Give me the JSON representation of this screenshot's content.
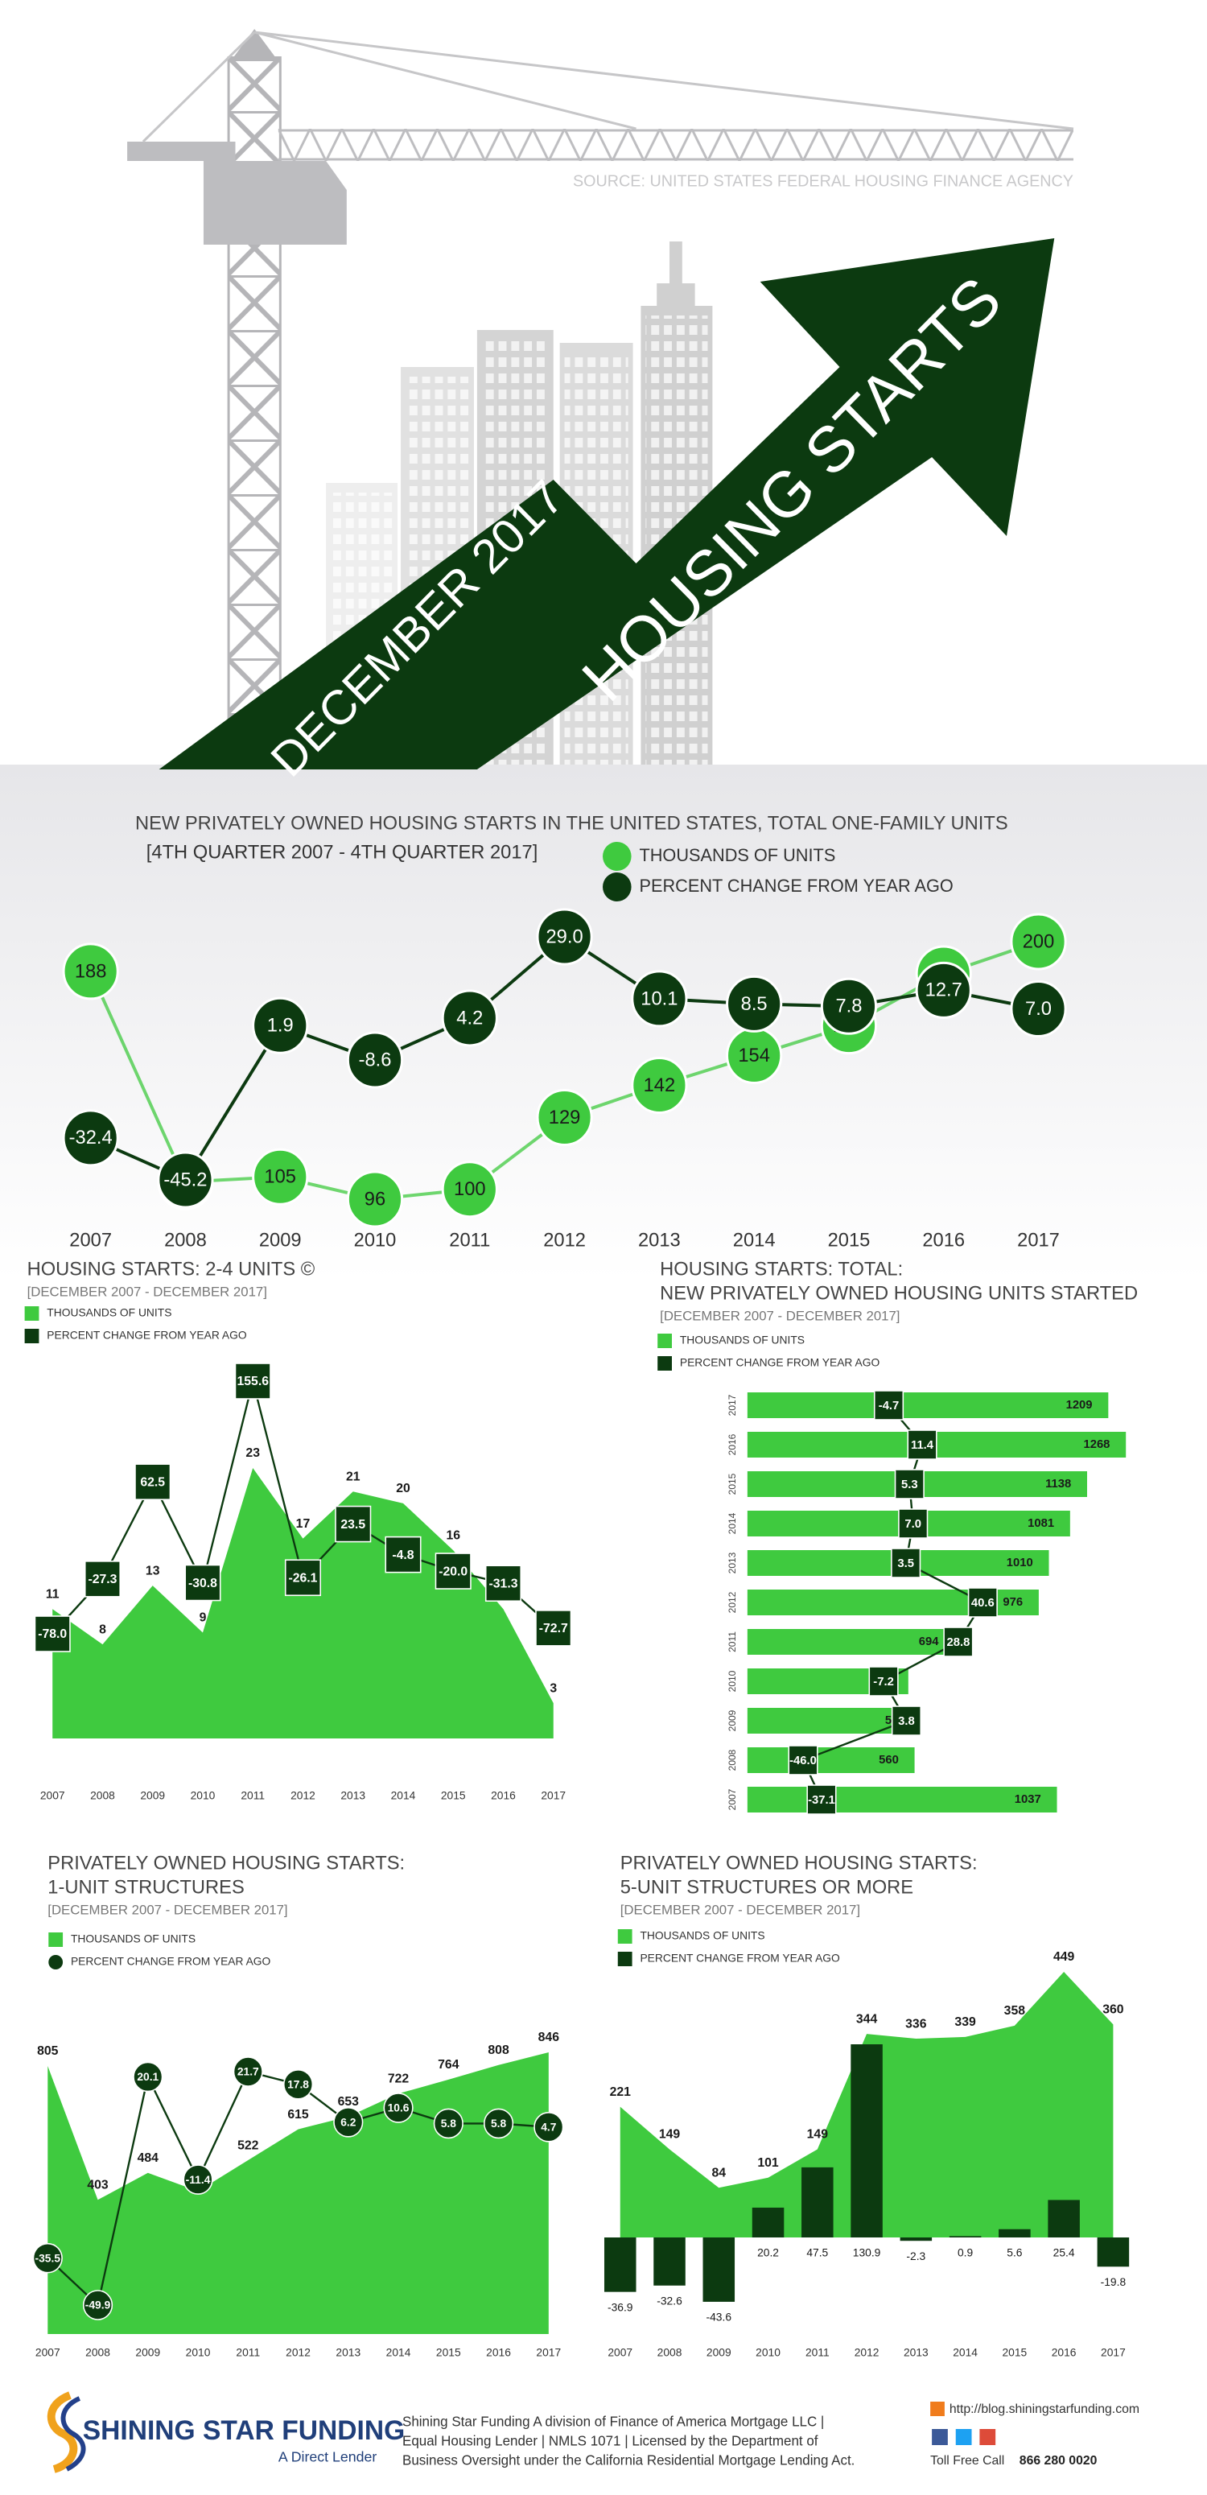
{
  "header": {
    "source": "SOURCE: UNITED STATES FEDERAL HOUSING FINANCE AGENCY",
    "date": "DECEMBER 2017",
    "title": "HOUSING STARTS"
  },
  "chart_data": [
    {
      "type": "line",
      "title": [
        "NEW PRIVATELY OWNED HOUSING STARTS IN THE UNITED STATES, TOTAL ONE-FAMILY UNITS"
      ],
      "subtitle": "[4TH QUARTER 2007 - 4TH QUARTER 2017]",
      "categories": [
        "2007",
        "2008",
        "2009",
        "2010",
        "2011",
        "2012",
        "2013",
        "2014",
        "2015",
        "2016",
        "2017"
      ],
      "series": [
        {
          "name": "THOUSANDS OF UNITS",
          "type": "line",
          "marker": "circle",
          "color": "#3fca3f",
          "values": [
            188,
            103,
            105,
            96,
            100,
            129,
            142,
            154,
            166,
            187,
            200
          ]
        },
        {
          "name": "PERCENT CHANGE FROM YEAR AGO",
          "type": "line",
          "marker": "circle",
          "color": "#0c3a10",
          "values": [
            -32.4,
            -45.2,
            1.9,
            -8.6,
            4.2,
            29.0,
            10.1,
            8.5,
            7.8,
            12.7,
            7.0
          ],
          "value_labels": [
            "-32.4",
            "-45.2",
            "1.9",
            "-8.6",
            "4.2",
            "29.0",
            "10.1",
            "8.5",
            "7.8",
            "12.7",
            "7.0"
          ]
        }
      ]
    },
    {
      "type": "area",
      "title": [
        "HOUSING STARTS: 2-4 UNITS ©"
      ],
      "subtitle": "[DECEMBER 2007 - DECEMBER 2017]",
      "categories": [
        "2007",
        "2008",
        "2009",
        "2010",
        "2011",
        "2012",
        "2013",
        "2014",
        "2015",
        "2016",
        "2017"
      ],
      "series": [
        {
          "name": "THOUSANDS OF UNITS",
          "type": "area",
          "color": "#3fca3f",
          "values": [
            11,
            8,
            13,
            9,
            23,
            17,
            21,
            20,
            16,
            11,
            3
          ]
        },
        {
          "name": "PERCENT CHANGE FROM YEAR AGO",
          "type": "line",
          "marker": "square",
          "color": "#0c3a10",
          "values": [
            -78.0,
            -27.3,
            62.5,
            -30.8,
            155.6,
            -26.1,
            23.5,
            -4.8,
            -20.0,
            -31.3,
            -72.7
          ],
          "value_labels": [
            "-78.0",
            "-27.3",
            "62.5",
            "-30.8",
            "155.6",
            "-26.1",
            "23.5",
            "-4.8",
            "-20.0",
            "-31.3",
            "-72.7"
          ]
        }
      ]
    },
    {
      "type": "bar",
      "orientation": "horizontal",
      "title": [
        "HOUSING STARTS: TOTAL:",
        "NEW PRIVATELY OWNED HOUSING UNITS STARTED"
      ],
      "subtitle": "[DECEMBER 2007 - DECEMBER 2017]",
      "categories": [
        "2017",
        "2016",
        "2015",
        "2014",
        "2013",
        "2012",
        "2011",
        "2010",
        "2009",
        "2008",
        "2007"
      ],
      "series": [
        {
          "name": "THOUSANDS OF UNITS",
          "type": "bar",
          "color": "#3fca3f",
          "values": [
            1209,
            1268,
            1138,
            1081,
            1010,
            976,
            694,
            539,
            581,
            560,
            1037
          ]
        },
        {
          "name": "PERCENT CHANGE FROM YEAR AGO",
          "type": "line",
          "marker": "square",
          "color": "#0c3a10",
          "values": [
            -4.7,
            11.4,
            5.3,
            7.0,
            3.5,
            40.6,
            28.8,
            -7.2,
            3.8,
            -46.0,
            -37.1
          ],
          "value_labels": [
            "-4.7",
            "11.4",
            "5.3",
            "7.0",
            "3.5",
            "40.6",
            "28.8",
            "-7.2",
            "3.8",
            "-46.0",
            "-37.1"
          ]
        }
      ]
    },
    {
      "type": "area",
      "title": [
        "PRIVATELY OWNED HOUSING STARTS:",
        "1-UNIT STRUCTURES"
      ],
      "subtitle": "[DECEMBER 2007 - DECEMBER 2017]",
      "categories": [
        "2007",
        "2008",
        "2009",
        "2010",
        "2011",
        "2012",
        "2013",
        "2014",
        "2015",
        "2016",
        "2017"
      ],
      "series": [
        {
          "name": "THOUSANDS OF UNITS",
          "type": "area",
          "color": "#3fca3f",
          "values": [
            805,
            403,
            484,
            429,
            522,
            615,
            653,
            722,
            764,
            808,
            846
          ]
        },
        {
          "name": "PERCENT CHANGE FROM YEAR AGO",
          "type": "line",
          "marker": "circle",
          "color": "#0c3a10",
          "values": [
            -35.5,
            -49.9,
            20.1,
            -11.4,
            21.7,
            17.8,
            6.2,
            10.6,
            5.8,
            5.8,
            4.7
          ]
        }
      ]
    },
    {
      "type": "area",
      "title": [
        "PRIVATELY OWNED HOUSING STARTS:",
        "5-UNIT STRUCTURES OR MORE"
      ],
      "subtitle": "[DECEMBER 2007 - DECEMBER 2017]",
      "categories": [
        "2007",
        "2008",
        "2009",
        "2010",
        "2011",
        "2012",
        "2013",
        "2014",
        "2015",
        "2016",
        "2017"
      ],
      "series": [
        {
          "name": "THOUSANDS OF UNITS",
          "type": "area",
          "color": "#3fca3f",
          "values": [
            221,
            149,
            84,
            101,
            149,
            344,
            336,
            339,
            358,
            449,
            360
          ]
        },
        {
          "name": "PERCENT CHANGE FROM YEAR AGO",
          "type": "bar",
          "color": "#0c3a10",
          "values": [
            -36.9,
            -32.6,
            -43.6,
            20.2,
            47.5,
            130.9,
            -2.3,
            0.9,
            5.6,
            25.4,
            -19.8
          ]
        }
      ]
    }
  ],
  "footer": {
    "brand": "SHINING STAR FUNDING",
    "tagline": "A Direct Lender",
    "disclosure": [
      "Shining Star Funding A division of Finance of America Mortgage LLC |",
      "Equal Housing Lender | NMLS 1071 | Licensed by the Department of",
      "Business Oversight under the California Residential Mortgage Lending Act."
    ],
    "url": "http://blog.shiningstarfunding.com",
    "call": "Toll Free Call",
    "phone": "866 280 0020"
  }
}
